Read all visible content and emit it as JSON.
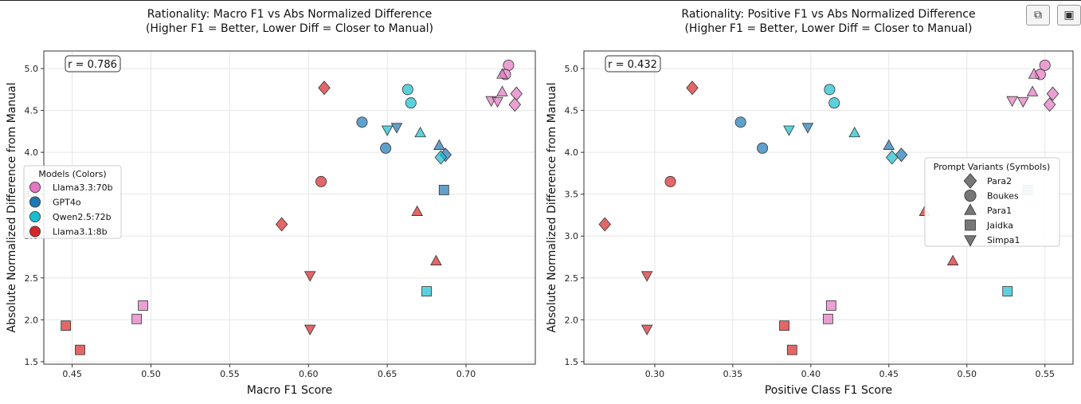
{
  "toolbar": {
    "copy_icon": "copy-icon",
    "save_icon": "save-icon"
  },
  "colors": {
    "Llama3.3:70b": "#e377c2",
    "GPT4o": "#1f77b4",
    "Qwen2.5:72b": "#17becf",
    "Llama3.1:8b": "#d62728"
  },
  "markers": {
    "Para2": "diamond",
    "Boukes": "circle",
    "Para1": "triangle-up",
    "Jaidka": "square",
    "Simpa1": "triangle-down"
  },
  "chart_data": [
    {
      "type": "scatter",
      "title": "Rationality: Macro F1 vs Abs Normalized Difference",
      "subtitle": "(Higher F1 = Better, Lower Diff = Closer to Manual)",
      "xlabel": "Macro F1 Score",
      "ylabel": "Absolute Normalized Difference from Manual",
      "annotation": "r = 0.786",
      "xlim": [
        0.432,
        0.744
      ],
      "ylim": [
        1.47,
        5.21
      ],
      "xticks": [
        0.45,
        0.5,
        0.55,
        0.6,
        0.65,
        0.7
      ],
      "yticks": [
        1.5,
        2.0,
        2.5,
        3.0,
        3.5,
        4.0,
        4.5,
        5.0
      ],
      "grid": true,
      "legend": {
        "title": "Models (Colors)",
        "placement": "center-left",
        "entries": [
          "Llama3.3:70b",
          "GPT4o",
          "Qwen2.5:72b",
          "Llama3.1:8b"
        ]
      },
      "points": [
        {
          "model": "Llama3.3:70b",
          "variant": "Boukes",
          "x": 0.727,
          "y": 5.04
        },
        {
          "model": "Llama3.3:70b",
          "variant": "Boukes",
          "x": 0.725,
          "y": 4.93
        },
        {
          "model": "Llama3.3:70b",
          "variant": "Para1",
          "x": 0.723,
          "y": 4.93
        },
        {
          "model": "Llama3.3:70b",
          "variant": "Para1",
          "x": 0.723,
          "y": 4.72
        },
        {
          "model": "Llama3.3:70b",
          "variant": "Para2",
          "x": 0.732,
          "y": 4.7
        },
        {
          "model": "Llama3.3:70b",
          "variant": "Para2",
          "x": 0.731,
          "y": 4.57
        },
        {
          "model": "Llama3.3:70b",
          "variant": "Simpa1",
          "x": 0.716,
          "y": 4.62
        },
        {
          "model": "Llama3.3:70b",
          "variant": "Simpa1",
          "x": 0.72,
          "y": 4.61
        },
        {
          "model": "Llama3.3:70b",
          "variant": "Jaidka",
          "x": 0.495,
          "y": 2.17
        },
        {
          "model": "Llama3.3:70b",
          "variant": "Jaidka",
          "x": 0.491,
          "y": 2.01
        },
        {
          "model": "GPT4o",
          "variant": "Boukes",
          "x": 0.634,
          "y": 4.36
        },
        {
          "model": "GPT4o",
          "variant": "Boukes",
          "x": 0.649,
          "y": 4.05
        },
        {
          "model": "GPT4o",
          "variant": "Simpa1",
          "x": 0.656,
          "y": 4.3
        },
        {
          "model": "GPT4o",
          "variant": "Para1",
          "x": 0.683,
          "y": 4.08
        },
        {
          "model": "GPT4o",
          "variant": "Para2",
          "x": 0.687,
          "y": 3.97
        },
        {
          "model": "GPT4o",
          "variant": "Jaidka",
          "x": 0.686,
          "y": 3.55
        },
        {
          "model": "Qwen2.5:72b",
          "variant": "Boukes",
          "x": 0.663,
          "y": 4.75
        },
        {
          "model": "Qwen2.5:72b",
          "variant": "Boukes",
          "x": 0.665,
          "y": 4.59
        },
        {
          "model": "Qwen2.5:72b",
          "variant": "Simpa1",
          "x": 0.65,
          "y": 4.27
        },
        {
          "model": "Qwen2.5:72b",
          "variant": "Para1",
          "x": 0.671,
          "y": 4.23
        },
        {
          "model": "Qwen2.5:72b",
          "variant": "Para2",
          "x": 0.684,
          "y": 3.94
        },
        {
          "model": "Qwen2.5:72b",
          "variant": "Jaidka",
          "x": 0.675,
          "y": 2.34
        },
        {
          "model": "Llama3.1:8b",
          "variant": "Para2",
          "x": 0.61,
          "y": 4.77
        },
        {
          "model": "Llama3.1:8b",
          "variant": "Para2",
          "x": 0.583,
          "y": 3.14
        },
        {
          "model": "Llama3.1:8b",
          "variant": "Boukes",
          "x": 0.608,
          "y": 3.65
        },
        {
          "model": "Llama3.1:8b",
          "variant": "Para1",
          "x": 0.669,
          "y": 3.29
        },
        {
          "model": "Llama3.1:8b",
          "variant": "Para1",
          "x": 0.681,
          "y": 2.7
        },
        {
          "model": "Llama3.1:8b",
          "variant": "Simpa1",
          "x": 0.601,
          "y": 2.53
        },
        {
          "model": "Llama3.1:8b",
          "variant": "Simpa1",
          "x": 0.601,
          "y": 1.89
        },
        {
          "model": "Llama3.1:8b",
          "variant": "Jaidka",
          "x": 0.446,
          "y": 1.93
        },
        {
          "model": "Llama3.1:8b",
          "variant": "Jaidka",
          "x": 0.455,
          "y": 1.64
        }
      ]
    },
    {
      "type": "scatter",
      "title": "Rationality: Positive F1 vs Abs Normalized Difference",
      "subtitle": "(Higher F1 = Better, Lower Diff = Closer to Manual)",
      "xlabel": "Positive Class F1 Score",
      "ylabel": "Absolute Normalized Difference from Manual",
      "annotation": "r = 0.432",
      "xlim": [
        0.2546,
        0.568
      ],
      "ylim": [
        1.47,
        5.21
      ],
      "xticks": [
        0.3,
        0.35,
        0.4,
        0.45,
        0.5,
        0.55
      ],
      "yticks": [
        1.5,
        2.0,
        2.5,
        3.0,
        3.5,
        4.0,
        4.5,
        5.0
      ],
      "grid": true,
      "legend": {
        "title": "Prompt Variants (Symbols)",
        "placement": "center-right",
        "entries": [
          "Para2",
          "Boukes",
          "Para1",
          "Jaidka",
          "Simpa1"
        ]
      },
      "points": [
        {
          "model": "Llama3.3:70b",
          "variant": "Boukes",
          "x": 0.55,
          "y": 5.04
        },
        {
          "model": "Llama3.3:70b",
          "variant": "Boukes",
          "x": 0.547,
          "y": 4.93
        },
        {
          "model": "Llama3.3:70b",
          "variant": "Para1",
          "x": 0.543,
          "y": 4.93
        },
        {
          "model": "Llama3.3:70b",
          "variant": "Para1",
          "x": 0.542,
          "y": 4.72
        },
        {
          "model": "Llama3.3:70b",
          "variant": "Para2",
          "x": 0.555,
          "y": 4.7
        },
        {
          "model": "Llama3.3:70b",
          "variant": "Para2",
          "x": 0.553,
          "y": 4.57
        },
        {
          "model": "Llama3.3:70b",
          "variant": "Simpa1",
          "x": 0.529,
          "y": 4.62
        },
        {
          "model": "Llama3.3:70b",
          "variant": "Simpa1",
          "x": 0.536,
          "y": 4.61
        },
        {
          "model": "Llama3.3:70b",
          "variant": "Jaidka",
          "x": 0.413,
          "y": 2.17
        },
        {
          "model": "Llama3.3:70b",
          "variant": "Jaidka",
          "x": 0.411,
          "y": 2.01
        },
        {
          "model": "GPT4o",
          "variant": "Boukes",
          "x": 0.355,
          "y": 4.36
        },
        {
          "model": "GPT4o",
          "variant": "Boukes",
          "x": 0.369,
          "y": 4.05
        },
        {
          "model": "GPT4o",
          "variant": "Simpa1",
          "x": 0.398,
          "y": 4.3
        },
        {
          "model": "GPT4o",
          "variant": "Para1",
          "x": 0.45,
          "y": 4.08
        },
        {
          "model": "GPT4o",
          "variant": "Para2",
          "x": 0.458,
          "y": 3.97
        },
        {
          "model": "GPT4o",
          "variant": "Jaidka",
          "x": 0.539,
          "y": 3.55
        },
        {
          "model": "Qwen2.5:72b",
          "variant": "Boukes",
          "x": 0.412,
          "y": 4.75
        },
        {
          "model": "Qwen2.5:72b",
          "variant": "Boukes",
          "x": 0.415,
          "y": 4.59
        },
        {
          "model": "Qwen2.5:72b",
          "variant": "Simpa1",
          "x": 0.386,
          "y": 4.27
        },
        {
          "model": "Qwen2.5:72b",
          "variant": "Para1",
          "x": 0.428,
          "y": 4.23
        },
        {
          "model": "Qwen2.5:72b",
          "variant": "Para2",
          "x": 0.452,
          "y": 3.94
        },
        {
          "model": "Qwen2.5:72b",
          "variant": "Jaidka",
          "x": 0.526,
          "y": 2.34
        },
        {
          "model": "Llama3.1:8b",
          "variant": "Para2",
          "x": 0.324,
          "y": 4.77
        },
        {
          "model": "Llama3.1:8b",
          "variant": "Para2",
          "x": 0.268,
          "y": 3.14
        },
        {
          "model": "Llama3.1:8b",
          "variant": "Boukes",
          "x": 0.31,
          "y": 3.65
        },
        {
          "model": "Llama3.1:8b",
          "variant": "Para1",
          "x": 0.473,
          "y": 3.29
        },
        {
          "model": "Llama3.1:8b",
          "variant": "Para1",
          "x": 0.491,
          "y": 2.7
        },
        {
          "model": "Llama3.1:8b",
          "variant": "Simpa1",
          "x": 0.295,
          "y": 2.53
        },
        {
          "model": "Llama3.1:8b",
          "variant": "Simpa1",
          "x": 0.295,
          "y": 1.89
        },
        {
          "model": "Llama3.1:8b",
          "variant": "Jaidka",
          "x": 0.383,
          "y": 1.93
        },
        {
          "model": "Llama3.1:8b",
          "variant": "Jaidka",
          "x": 0.388,
          "y": 1.64
        }
      ]
    }
  ]
}
